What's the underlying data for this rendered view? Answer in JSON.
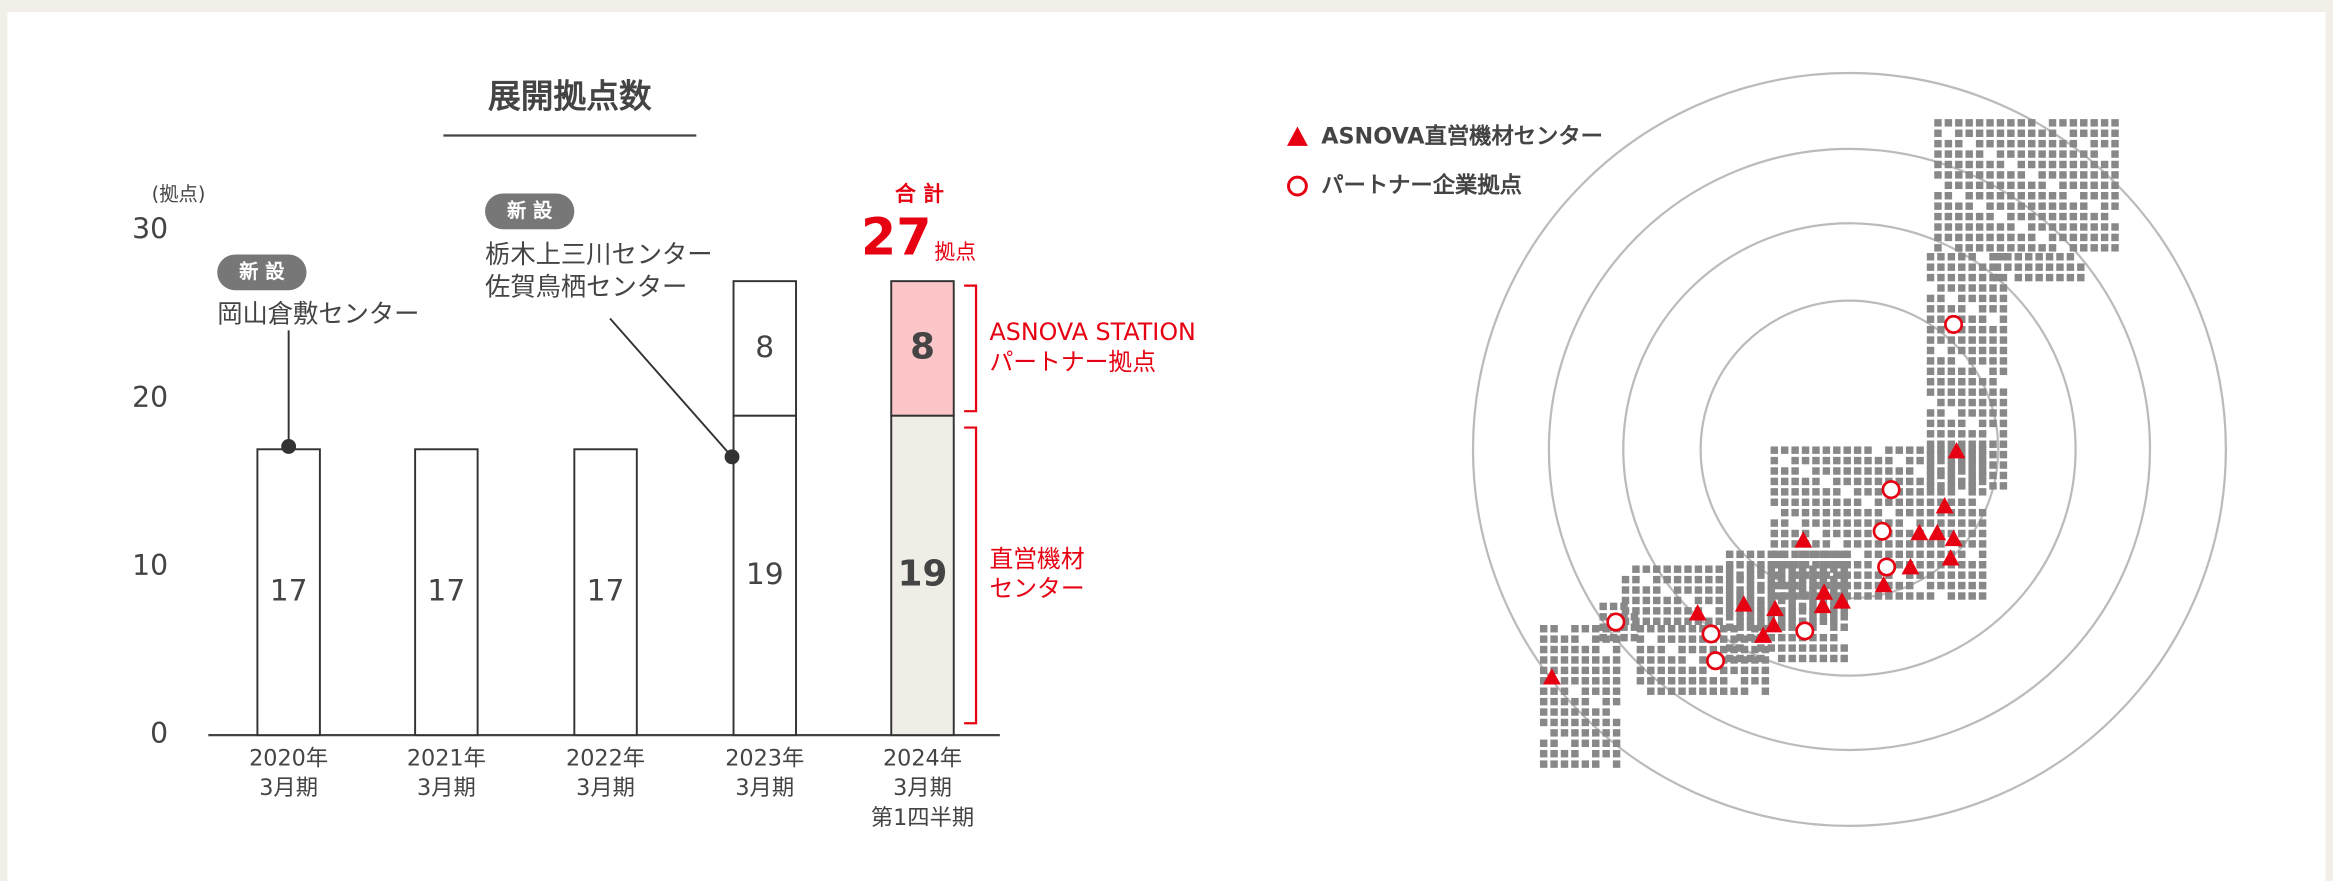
{
  "chart_data": {
    "type": "stacked_bar",
    "title": "展開拠点数",
    "y_unit": "(拠点)",
    "categories": [
      [
        "2020年",
        "3月期"
      ],
      [
        "2021年",
        "3月期"
      ],
      [
        "2022年",
        "3月期"
      ],
      [
        "2023年",
        "3月期"
      ],
      [
        "2024年",
        "3月期",
        "第1四半期"
      ]
    ],
    "series": [
      {
        "name": [
          "直営機材",
          "センター"
        ],
        "colors": [
          "#ffffff",
          "#ffffff",
          "#ffffff",
          "#ffffff",
          "#f0ede6"
        ],
        "values": [
          17,
          17,
          17,
          19,
          19
        ]
      },
      {
        "name": [
          "ASNOVA STATION",
          "パートナー拠点"
        ],
        "colors": [
          "#ffffff",
          "#ffffff",
          "#ffffff",
          "#ffffff",
          "#fcc6c8"
        ],
        "values": [
          null,
          null,
          null,
          8,
          8
        ]
      }
    ],
    "total": {
      "label": "合 計",
      "value": 27,
      "unit": "拠点"
    },
    "annotations": [
      {
        "badge": "新 設",
        "lines": [
          "岡山倉敷センター"
        ]
      },
      {
        "badge": "新 設",
        "lines": [
          "栃木上三川センター",
          "佐賀鳥栖センター"
        ]
      }
    ],
    "ylim": [
      0,
      30
    ],
    "yticks": [
      0,
      10,
      20,
      30
    ],
    "grid": false
  },
  "map": {
    "legend": [
      {
        "shape": "triangle",
        "color": "#e60012",
        "label": "ASNOVA直営機材センター"
      },
      {
        "shape": "circle",
        "color": "#e60012",
        "label": "パートナー企業拠点"
      }
    ]
  }
}
